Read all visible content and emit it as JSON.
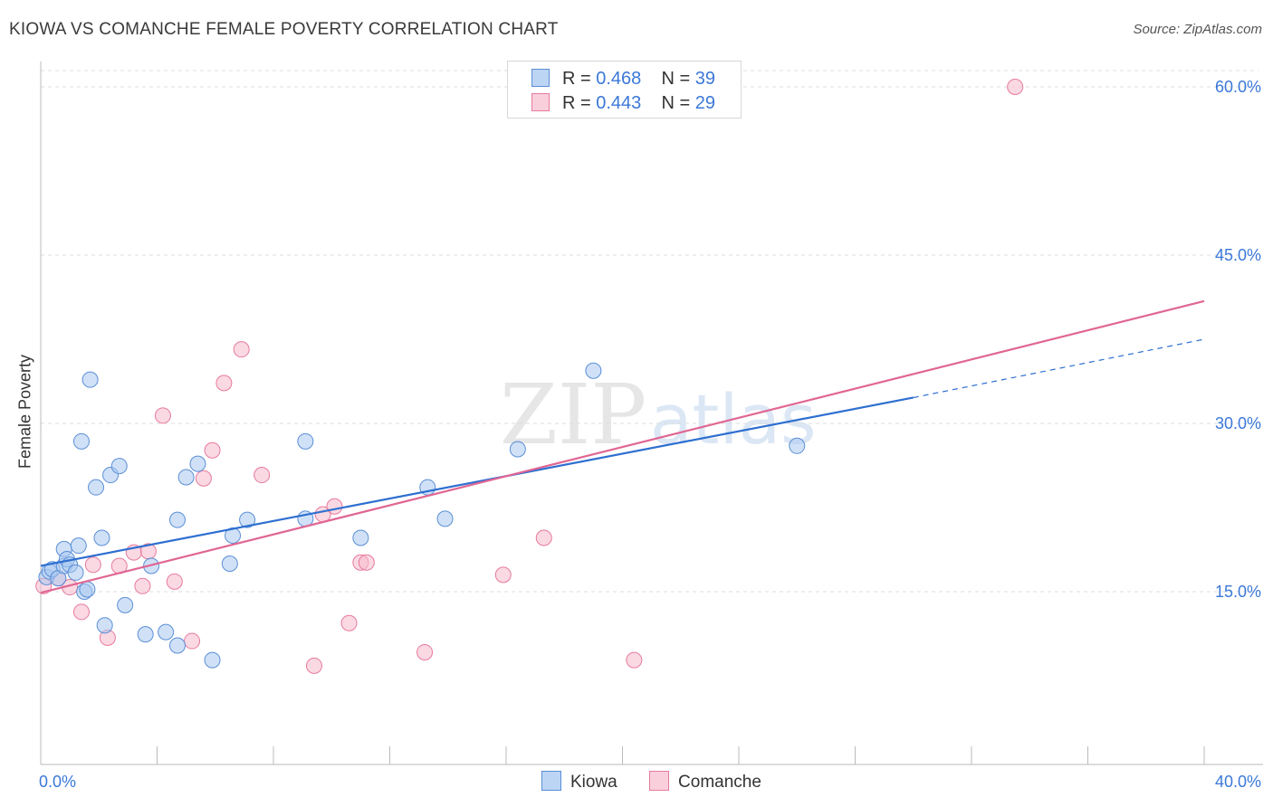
{
  "header": {
    "title": "KIOWA VS COMANCHE FEMALE POVERTY CORRELATION CHART",
    "source": "Source: ZipAtlas.com"
  },
  "legend": {
    "rows": [
      {
        "r_label": "R = ",
        "r_value": "0.468",
        "n_label": "N = ",
        "n_value": "39"
      },
      {
        "r_label": "R = ",
        "r_value": "0.443",
        "n_label": "N = ",
        "n_value": "29"
      }
    ]
  },
  "bottom_legend": {
    "kiowa": "Kiowa",
    "comanche": "Comanche"
  },
  "watermark": {
    "zip": "ZIP",
    "atlas": "atlas"
  },
  "colors": {
    "kiowa_fill": "#a9c8f0",
    "kiowa_stroke": "#5b8fd6",
    "kiowa_line": "#2e6fd0",
    "comanche_fill": "#f5b9cc",
    "comanche_stroke": "#e77a9e",
    "comanche_line": "#e06693",
    "tick_label": "#3b78d8",
    "grid": "#dddddd"
  },
  "chart_data": {
    "type": "scatter",
    "title": "KIOWA VS COMANCHE FEMALE POVERTY CORRELATION CHART",
    "xlabel": "",
    "ylabel": "Female Poverty",
    "xlim": [
      0,
      40
    ],
    "ylim": [
      0,
      61
    ],
    "x_ticks": [
      0,
      40
    ],
    "x_tick_labels": [
      "0.0%",
      "40.0%"
    ],
    "y_ticks": [
      15,
      30,
      45,
      60
    ],
    "y_tick_labels": [
      "15.0%",
      "30.0%",
      "45.0%",
      "60.0%"
    ],
    "grid": true,
    "legend_position": "top-center",
    "series": [
      {
        "name": "Kiowa",
        "r": 0.468,
        "n": 39,
        "trend": {
          "x0": 0,
          "y0": 17.3,
          "x1": 30.0,
          "y1": 32.3,
          "dashed_to_x": 40,
          "dashed_to_y": 37.5
        },
        "points": [
          [
            0.2,
            16.3
          ],
          [
            0.3,
            16.8
          ],
          [
            0.4,
            17.0
          ],
          [
            0.6,
            16.2
          ],
          [
            0.8,
            17.3
          ],
          [
            0.8,
            18.8
          ],
          [
            0.9,
            17.9
          ],
          [
            1.0,
            17.4
          ],
          [
            1.2,
            16.7
          ],
          [
            1.3,
            19.1
          ],
          [
            1.4,
            28.4
          ],
          [
            1.5,
            15.0
          ],
          [
            1.6,
            15.2
          ],
          [
            1.7,
            33.9
          ],
          [
            1.9,
            24.3
          ],
          [
            2.1,
            19.8
          ],
          [
            2.2,
            12.0
          ],
          [
            2.4,
            25.4
          ],
          [
            2.7,
            26.2
          ],
          [
            2.9,
            13.8
          ],
          [
            3.6,
            11.2
          ],
          [
            3.8,
            17.3
          ],
          [
            4.3,
            11.4
          ],
          [
            4.7,
            21.4
          ],
          [
            4.7,
            10.2
          ],
          [
            5.0,
            25.2
          ],
          [
            5.4,
            26.4
          ],
          [
            5.9,
            8.9
          ],
          [
            6.5,
            17.5
          ],
          [
            6.6,
            20.0
          ],
          [
            7.1,
            21.4
          ],
          [
            9.1,
            28.4
          ],
          [
            9.1,
            21.5
          ],
          [
            11.0,
            19.8
          ],
          [
            13.3,
            24.3
          ],
          [
            13.9,
            21.5
          ],
          [
            16.4,
            27.7
          ],
          [
            19.0,
            34.7
          ],
          [
            26.0,
            28.0
          ]
        ]
      },
      {
        "name": "Comanche",
        "r": 0.443,
        "n": 29,
        "trend": {
          "x0": 0,
          "y0": 14.9,
          "x1": 40,
          "y1": 40.9
        },
        "points": [
          [
            0.1,
            15.5
          ],
          [
            0.6,
            16.2
          ],
          [
            1.0,
            15.4
          ],
          [
            1.4,
            13.2
          ],
          [
            1.8,
            17.4
          ],
          [
            2.3,
            10.9
          ],
          [
            2.7,
            17.3
          ],
          [
            3.2,
            18.5
          ],
          [
            3.5,
            15.5
          ],
          [
            3.7,
            18.6
          ],
          [
            4.2,
            30.7
          ],
          [
            4.6,
            15.9
          ],
          [
            5.2,
            10.6
          ],
          [
            5.6,
            25.1
          ],
          [
            5.9,
            27.6
          ],
          [
            6.3,
            33.6
          ],
          [
            6.9,
            36.6
          ],
          [
            7.6,
            25.4
          ],
          [
            9.4,
            8.4
          ],
          [
            9.7,
            21.9
          ],
          [
            10.1,
            22.6
          ],
          [
            10.6,
            12.2
          ],
          [
            11.0,
            17.6
          ],
          [
            11.2,
            17.6
          ],
          [
            13.2,
            9.6
          ],
          [
            15.9,
            16.5
          ],
          [
            17.3,
            19.8
          ],
          [
            20.4,
            8.9
          ],
          [
            33.5,
            60.0
          ]
        ]
      }
    ]
  }
}
